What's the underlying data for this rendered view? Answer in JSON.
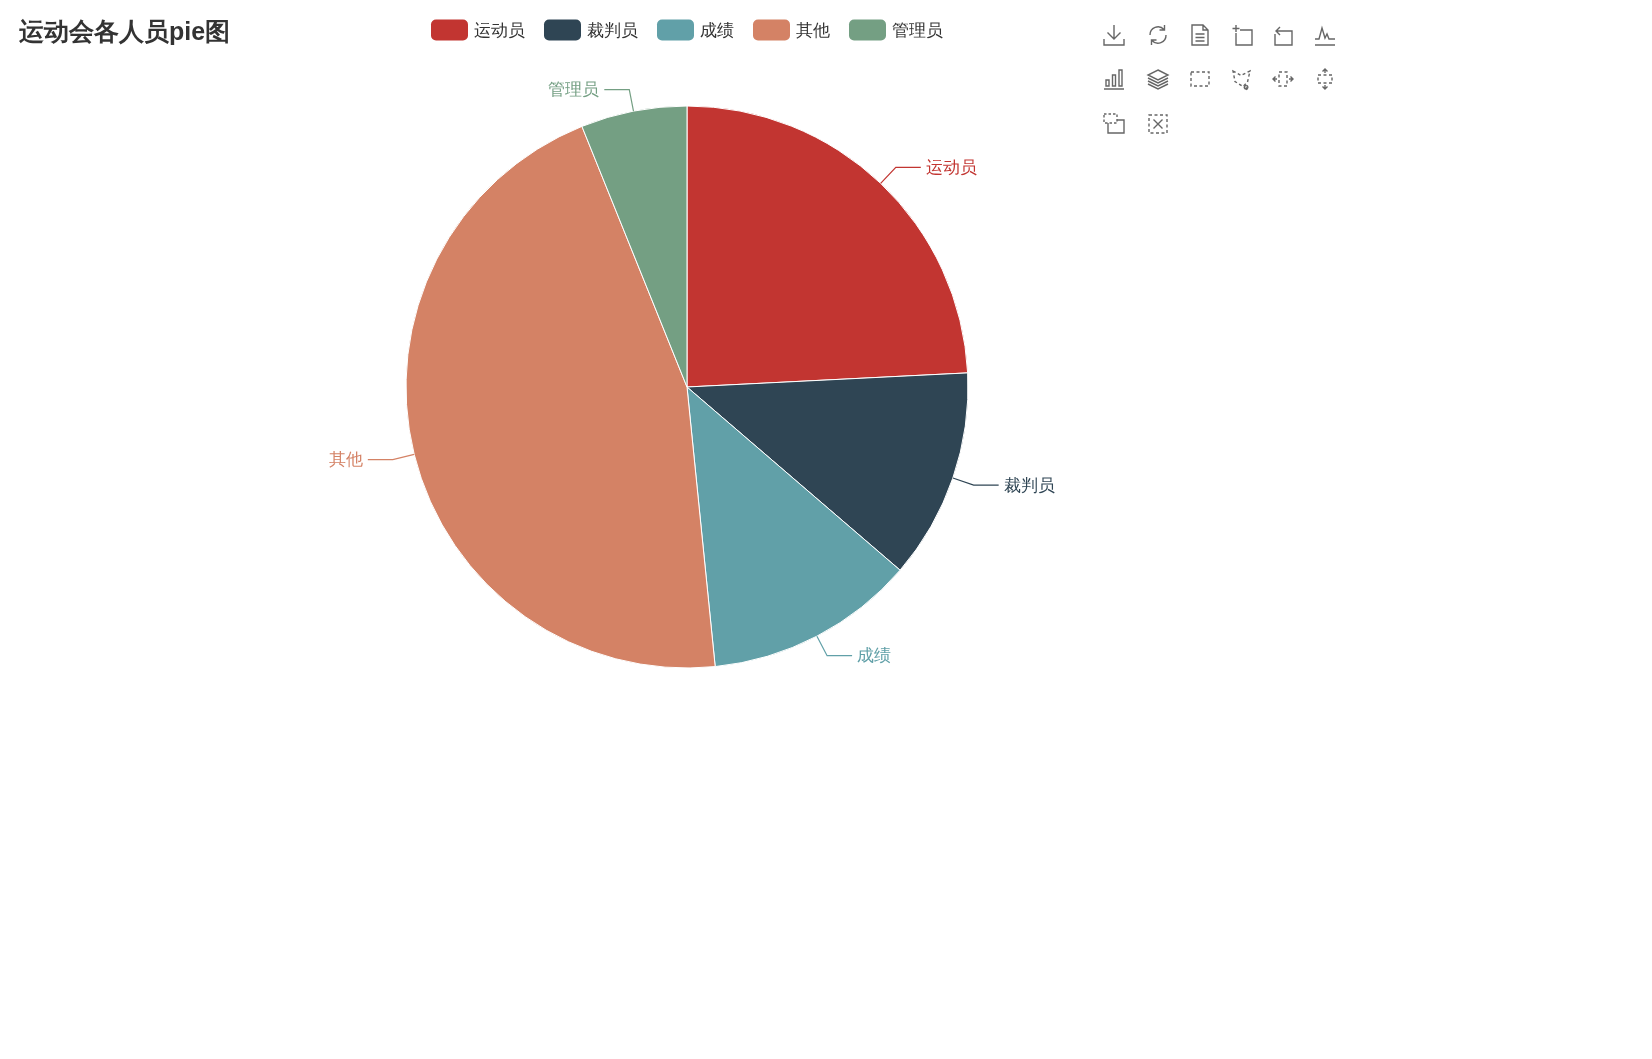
{
  "chart_data": {
    "type": "pie",
    "title": "运动会各人员pie图",
    "categories": [
      "运动员",
      "裁判员",
      "成绩",
      "其他",
      "管理员"
    ],
    "values": [
      24.2,
      12.1,
      12.1,
      45.5,
      6.1
    ],
    "colors": [
      "#c23531",
      "#2f4554",
      "#61a0a8",
      "#d48265",
      "#749f83"
    ],
    "legend": "top"
  }
}
